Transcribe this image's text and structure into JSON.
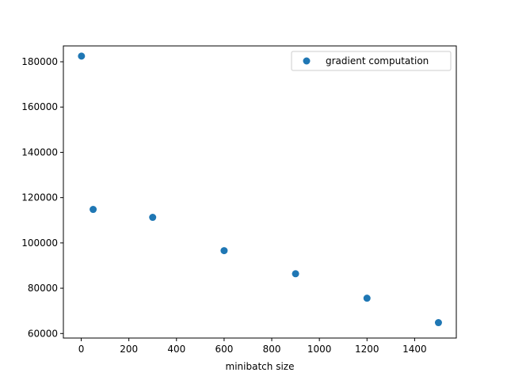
{
  "chart_data": {
    "type": "scatter",
    "title": "",
    "xlabel": "minibatch size",
    "ylabel": "",
    "xlim": [
      -75,
      1575
    ],
    "ylim": [
      58000,
      187000
    ],
    "xticks": [
      0,
      200,
      400,
      600,
      800,
      1000,
      1200,
      1400
    ],
    "yticks": [
      60000,
      80000,
      100000,
      120000,
      140000,
      160000,
      180000
    ],
    "grid": false,
    "legend_position": "top-right",
    "series": [
      {
        "name": "gradient computation",
        "color": "#1f77b4",
        "marker": "circle",
        "x": [
          1,
          50,
          300,
          600,
          900,
          1200,
          1500
        ],
        "y": [
          182500,
          114800,
          111300,
          96600,
          86400,
          75600,
          64800
        ]
      }
    ]
  }
}
